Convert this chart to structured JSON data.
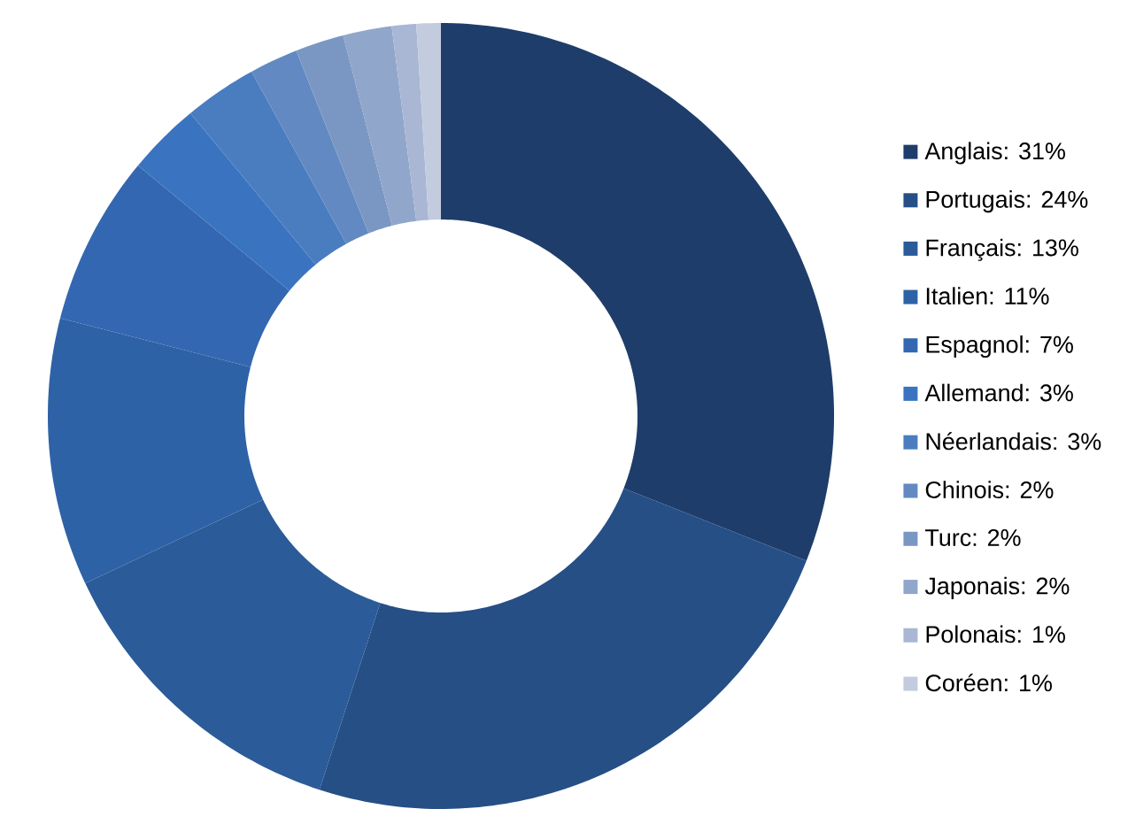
{
  "chart_data": {
    "type": "donut",
    "categories": [
      "Anglais: 31%",
      "Portugais: 24%",
      "Français: 13%",
      "Italien: 11%",
      "Espagnol: 7%",
      "Allemand: 3%",
      "Néerlandais: 3%",
      "Chinois: 2%",
      "Turc: 2%",
      "Japonais: 2%",
      "Polonais: 1%",
      "Coréen: 1%"
    ],
    "values": [
      31,
      24,
      13,
      11,
      7,
      3,
      3,
      2,
      2,
      2,
      1,
      1
    ],
    "colors": [
      "#1f3d6a",
      "#264f86",
      "#2b5b98",
      "#2e62a6",
      "#3367b1",
      "#3a74c0",
      "#4a7dc0",
      "#6289c1",
      "#7a97c4",
      "#91a6cb",
      "#a9b7d5",
      "#c3cbdf"
    ],
    "legend": "right"
  }
}
